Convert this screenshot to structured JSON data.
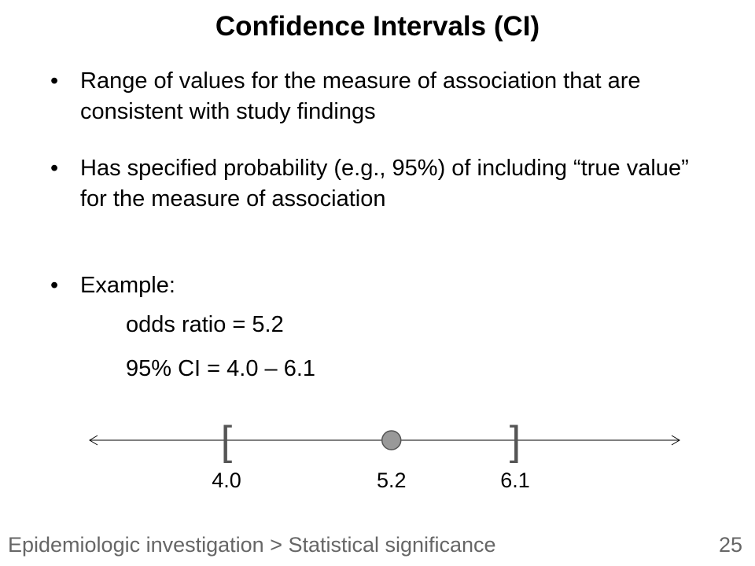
{
  "slide": {
    "title": "Confidence Intervals (CI)",
    "bullets": [
      {
        "marker": "•",
        "text": "Range of values for the measure of association that are consistent with study findings"
      },
      {
        "marker": "•",
        "text": "Has specified probability (e.g., 95%) of including “true value” for the measure of association"
      },
      {
        "marker": "•",
        "text": "Example:"
      }
    ],
    "example": {
      "odds_ratio_line": "odds ratio = 5.2",
      "ci_line": "95% CI = 4.0 – 6.1"
    }
  },
  "number_line": {
    "lower": 4.0,
    "point": 5.2,
    "upper": 6.1,
    "lower_label": "4.0",
    "point_label": "5.2",
    "upper_label": "6.1",
    "left_bracket": "[",
    "right_bracket": "]",
    "point_color": "#999999",
    "bracket_color": "#555555"
  },
  "footer": {
    "breadcrumb": "Epidemiologic investigation > Statistical significance",
    "page_number": "25"
  }
}
